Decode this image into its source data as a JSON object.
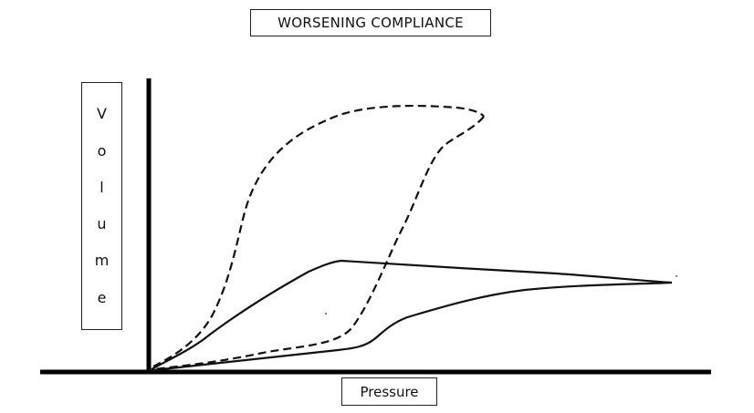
{
  "diagram": {
    "title": "WORSENING COMPLIANCE",
    "y_axis_label": "Volume",
    "x_axis_label": "Pressure",
    "curves": [
      {
        "name": "dashed-loop",
        "style": "dashed"
      },
      {
        "name": "solid-loop",
        "style": "solid"
      }
    ]
  }
}
